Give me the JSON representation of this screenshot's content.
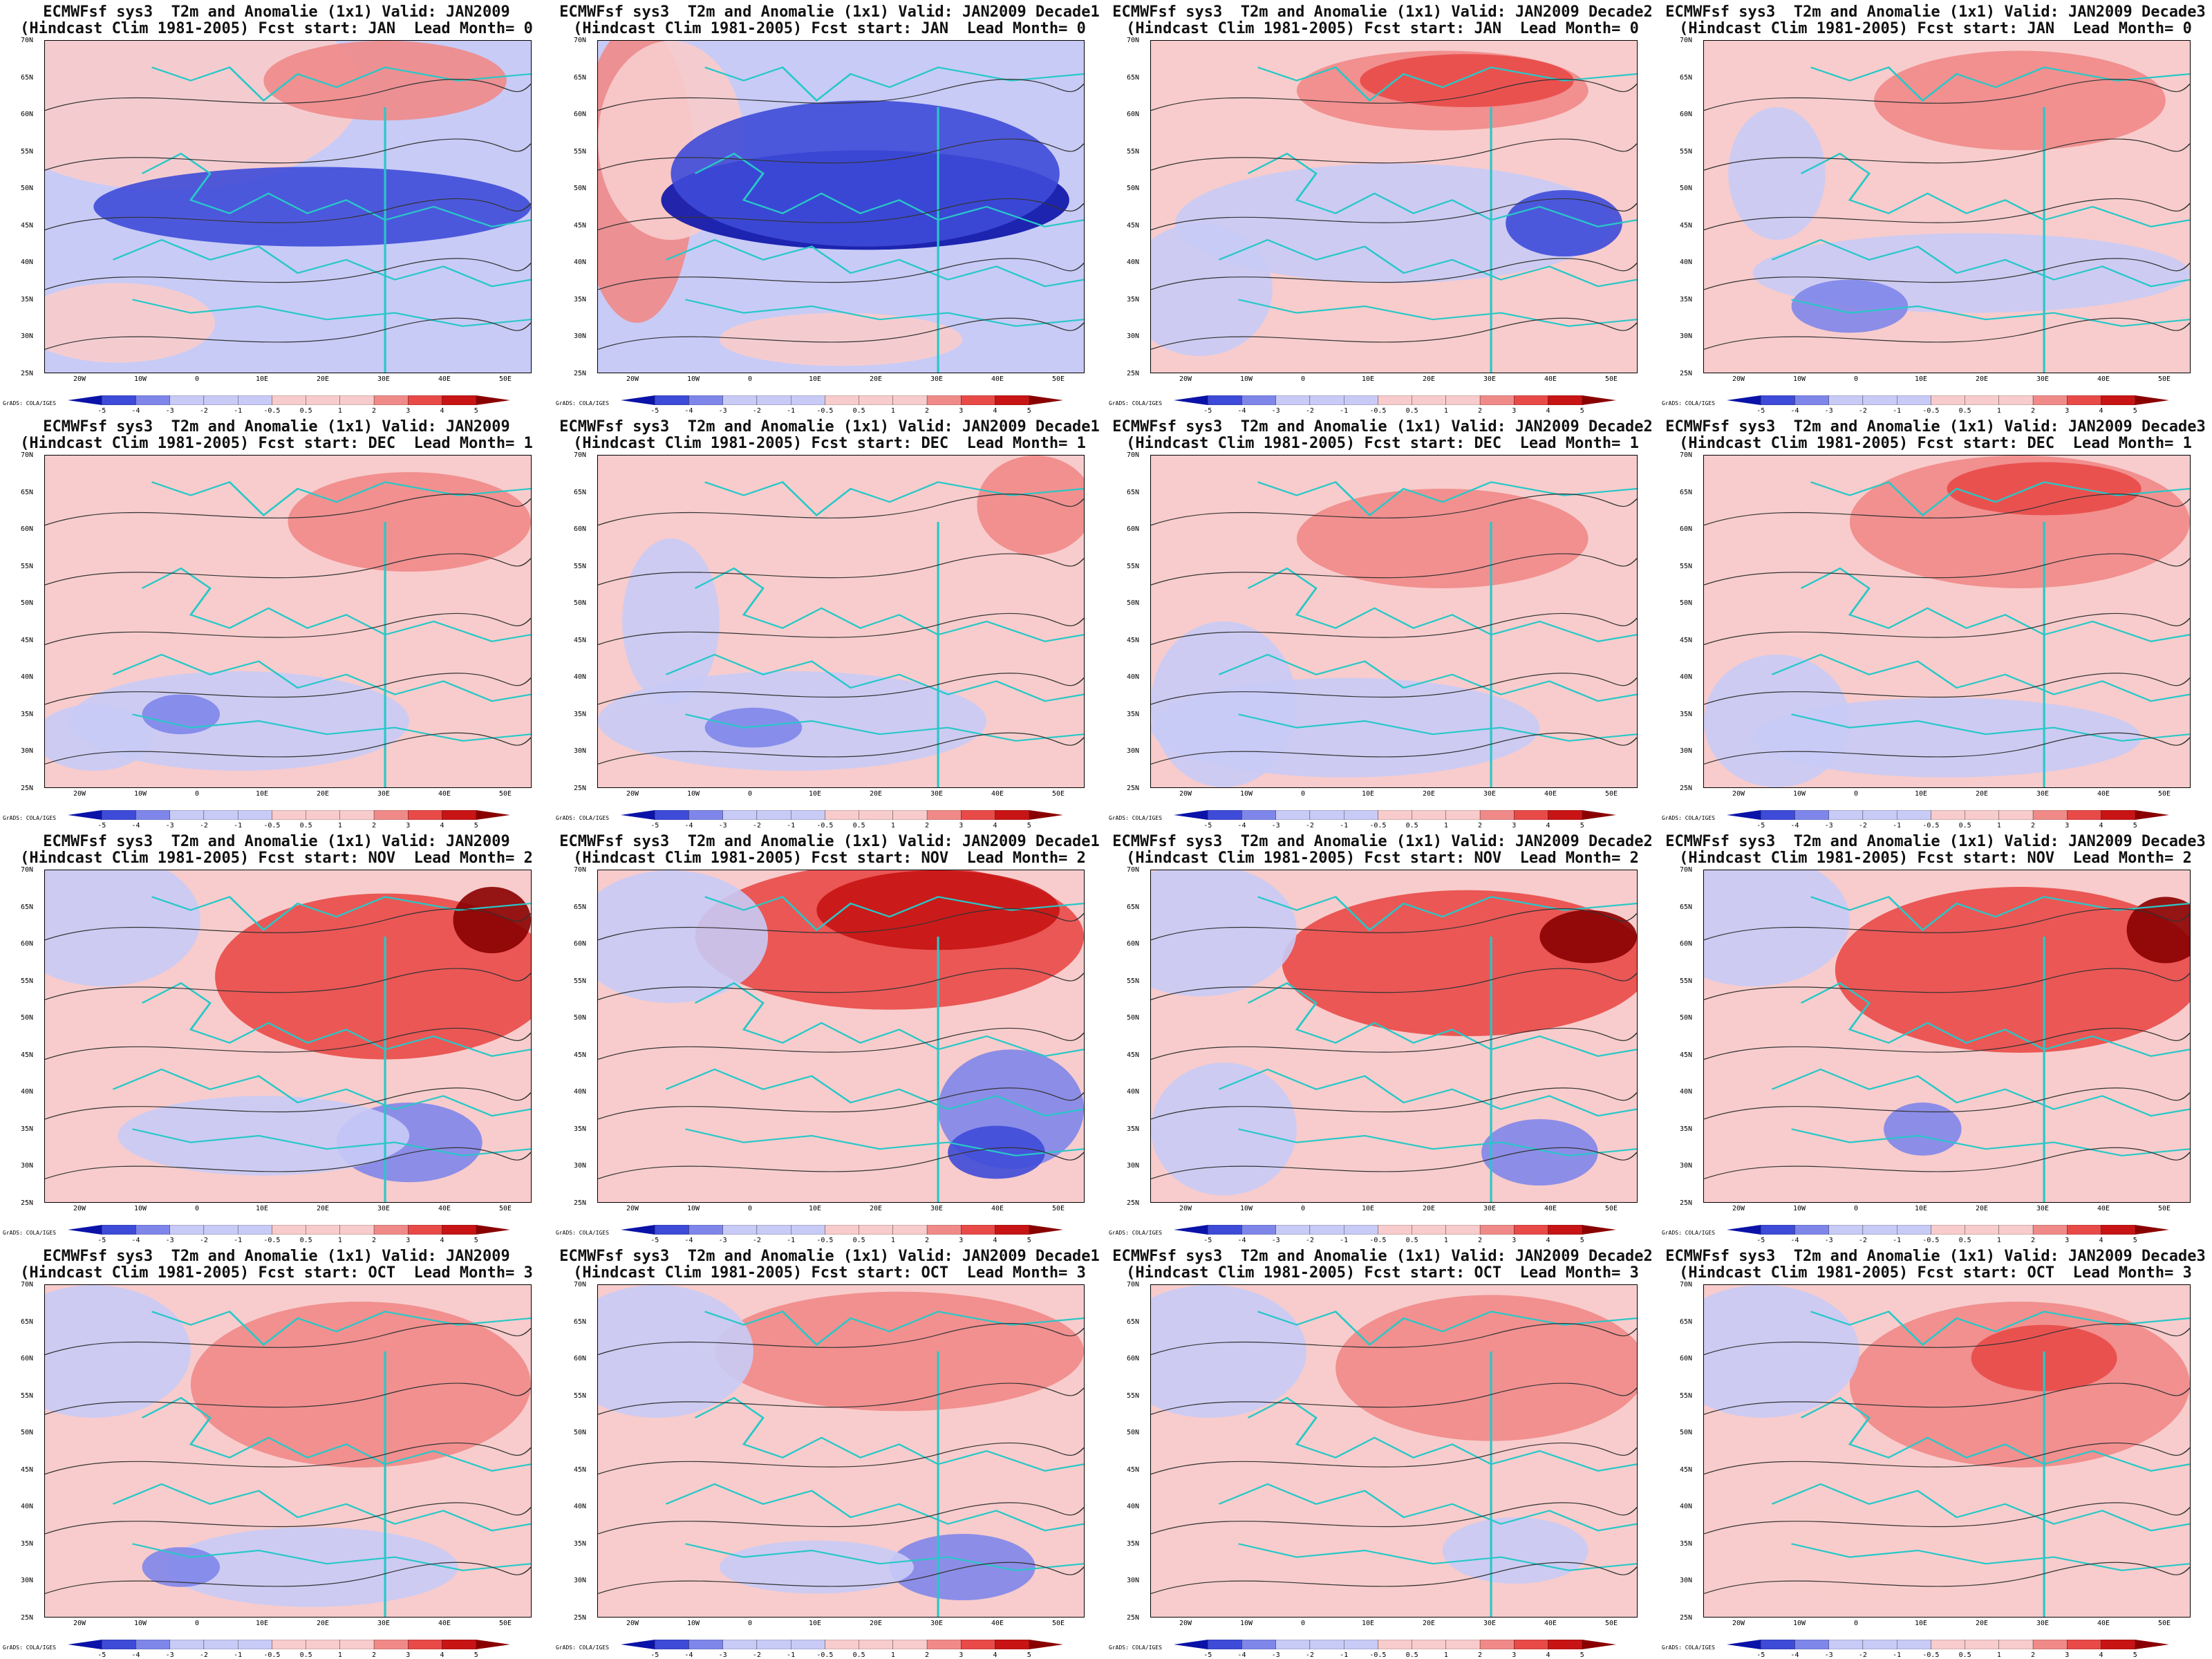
{
  "colors": {
    "strong_cold": "#0a12a8",
    "cold": "#3e4bd8",
    "mid_cold": "#7f86ea",
    "light_cold": "#c8cbf6",
    "light_warm": "#f8cccc",
    "warm": "#f08a88",
    "mid_warm": "#e84a48",
    "strong_warm": "#c81414",
    "extreme_warm": "#8a0000",
    "coast": "#28c8c8"
  },
  "colorbar_labels": [
    "-5",
    "-4",
    "-3",
    "-2",
    "-1",
    "-0.5",
    "0.5",
    "1",
    "2",
    "3",
    "4",
    "5"
  ],
  "lat_labels": [
    "70N",
    "65N",
    "60N",
    "55N",
    "50N",
    "45N",
    "40N",
    "35N",
    "30N",
    "25N"
  ],
  "lon_labels": [
    "20W",
    "10W",
    "0",
    "10E",
    "20E",
    "30E",
    "40E",
    "50E"
  ],
  "credit": "GrADS: COLA/IGES",
  "rows": [
    {
      "start": "JAN",
      "lead": "0"
    },
    {
      "start": "DEC",
      "lead": "1"
    },
    {
      "start": "NOV",
      "lead": "2"
    },
    {
      "start": "OCT",
      "lead": "3"
    }
  ],
  "cols": [
    {
      "valid": "JAN2009"
    },
    {
      "valid": "JAN2009 Decade1"
    },
    {
      "valid": "JAN2009 Decade2"
    },
    {
      "valid": "JAN2009 Decade3"
    }
  ],
  "panels": [
    {
      "row": 0,
      "col": 0,
      "bg": "light_cold",
      "shapes": [
        [
          "light_warm",
          25,
          15,
          40,
          30
        ],
        [
          "cold",
          55,
          50,
          45,
          12
        ],
        [
          "warm",
          70,
          12,
          25,
          12
        ],
        [
          "light_warm",
          15,
          85,
          20,
          12
        ]
      ]
    },
    {
      "row": 0,
      "col": 1,
      "bg": "light_cold",
      "shapes": [
        [
          "warm",
          8,
          40,
          12,
          45
        ],
        [
          "light_warm",
          15,
          30,
          15,
          30
        ],
        [
          "strong_cold",
          55,
          48,
          42,
          15
        ],
        [
          "cold",
          55,
          40,
          40,
          22
        ],
        [
          "light_warm",
          50,
          90,
          25,
          8
        ]
      ]
    },
    {
      "row": 0,
      "col": 2,
      "bg": "light_warm",
      "shapes": [
        [
          "warm",
          60,
          15,
          30,
          12
        ],
        [
          "mid_warm",
          65,
          12,
          22,
          8
        ],
        [
          "light_cold",
          50,
          55,
          45,
          18
        ],
        [
          "cold",
          85,
          55,
          12,
          10
        ],
        [
          "light_cold",
          10,
          75,
          15,
          20
        ]
      ]
    },
    {
      "row": 0,
      "col": 3,
      "bg": "light_warm",
      "shapes": [
        [
          "warm",
          65,
          18,
          30,
          15
        ],
        [
          "light_cold",
          55,
          70,
          45,
          12
        ],
        [
          "light_cold",
          15,
          40,
          10,
          20
        ],
        [
          "mid_cold",
          30,
          80,
          12,
          8
        ]
      ]
    },
    {
      "row": 1,
      "col": 0,
      "bg": "light_warm",
      "shapes": [
        [
          "warm",
          75,
          20,
          25,
          15
        ],
        [
          "light_cold",
          40,
          80,
          35,
          15
        ],
        [
          "light_cold",
          10,
          85,
          12,
          10
        ],
        [
          "mid_cold",
          28,
          78,
          8,
          6
        ]
      ]
    },
    {
      "row": 1,
      "col": 1,
      "bg": "light_warm",
      "shapes": [
        [
          "warm",
          90,
          15,
          12,
          15
        ],
        [
          "light_cold",
          40,
          80,
          40,
          15
        ],
        [
          "light_cold",
          15,
          50,
          10,
          25
        ],
        [
          "mid_cold",
          32,
          82,
          10,
          6
        ]
      ]
    },
    {
      "row": 1,
      "col": 2,
      "bg": "light_warm",
      "shapes": [
        [
          "warm",
          60,
          25,
          30,
          15
        ],
        [
          "light_cold",
          40,
          82,
          40,
          15
        ],
        [
          "light_cold",
          15,
          75,
          15,
          25
        ]
      ]
    },
    {
      "row": 1,
      "col": 3,
      "bg": "light_warm",
      "shapes": [
        [
          "warm",
          65,
          20,
          35,
          20
        ],
        [
          "mid_warm",
          70,
          10,
          20,
          8
        ],
        [
          "light_cold",
          50,
          85,
          40,
          12
        ],
        [
          "light_cold",
          15,
          80,
          15,
          20
        ]
      ]
    },
    {
      "row": 2,
      "col": 0,
      "bg": "light_warm",
      "shapes": [
        [
          "mid_warm",
          70,
          32,
          35,
          25
        ],
        [
          "extreme_warm",
          92,
          15,
          8,
          10
        ],
        [
          "light_cold",
          12,
          15,
          20,
          20
        ],
        [
          "mid_cold",
          75,
          82,
          15,
          12
        ],
        [
          "light_cold",
          45,
          80,
          30,
          12
        ]
      ]
    },
    {
      "row": 2,
      "col": 1,
      "bg": "light_warm",
      "shapes": [
        [
          "mid_warm",
          60,
          20,
          40,
          22
        ],
        [
          "strong_warm",
          70,
          12,
          25,
          12
        ],
        [
          "light_cold",
          15,
          20,
          20,
          20
        ],
        [
          "mid_cold",
          85,
          72,
          15,
          18
        ],
        [
          "cold",
          82,
          85,
          10,
          8
        ]
      ]
    },
    {
      "row": 2,
      "col": 2,
      "bg": "light_warm",
      "shapes": [
        [
          "mid_warm",
          65,
          28,
          38,
          22
        ],
        [
          "extreme_warm",
          90,
          20,
          10,
          8
        ],
        [
          "light_cold",
          10,
          18,
          20,
          20
        ],
        [
          "mid_cold",
          80,
          85,
          12,
          10
        ],
        [
          "light_cold",
          15,
          78,
          15,
          20
        ]
      ]
    },
    {
      "row": 2,
      "col": 3,
      "bg": "light_warm",
      "shapes": [
        [
          "mid_warm",
          65,
          30,
          38,
          25
        ],
        [
          "extreme_warm",
          95,
          18,
          8,
          10
        ],
        [
          "light_cold",
          10,
          15,
          20,
          20
        ],
        [
          "mid_cold",
          45,
          78,
          8,
          8
        ]
      ]
    },
    {
      "row": 3,
      "col": 0,
      "bg": "light_warm",
      "shapes": [
        [
          "warm",
          65,
          30,
          35,
          25
        ],
        [
          "light_cold",
          10,
          20,
          20,
          20
        ],
        [
          "light_cold",
          55,
          85,
          30,
          12
        ],
        [
          "mid_cold",
          28,
          85,
          8,
          6
        ]
      ]
    },
    {
      "row": 3,
      "col": 1,
      "bg": "light_warm",
      "shapes": [
        [
          "warm",
          62,
          20,
          38,
          18
        ],
        [
          "light_cold",
          12,
          20,
          20,
          20
        ],
        [
          "mid_cold",
          75,
          85,
          15,
          10
        ],
        [
          "light_cold",
          45,
          85,
          20,
          8
        ]
      ]
    },
    {
      "row": 3,
      "col": 2,
      "bg": "light_warm",
      "shapes": [
        [
          "warm",
          70,
          25,
          32,
          22
        ],
        [
          "light_cold",
          12,
          20,
          20,
          20
        ],
        [
          "light_cold",
          75,
          80,
          15,
          10
        ]
      ]
    },
    {
      "row": 3,
      "col": 3,
      "bg": "light_warm",
      "shapes": [
        [
          "warm",
          65,
          30,
          35,
          25
        ],
        [
          "mid_warm",
          70,
          22,
          15,
          10
        ],
        [
          "light_cold",
          12,
          20,
          20,
          20
        ],
        [
          "light_warm",
          35,
          80,
          25,
          15
        ]
      ]
    }
  ]
}
